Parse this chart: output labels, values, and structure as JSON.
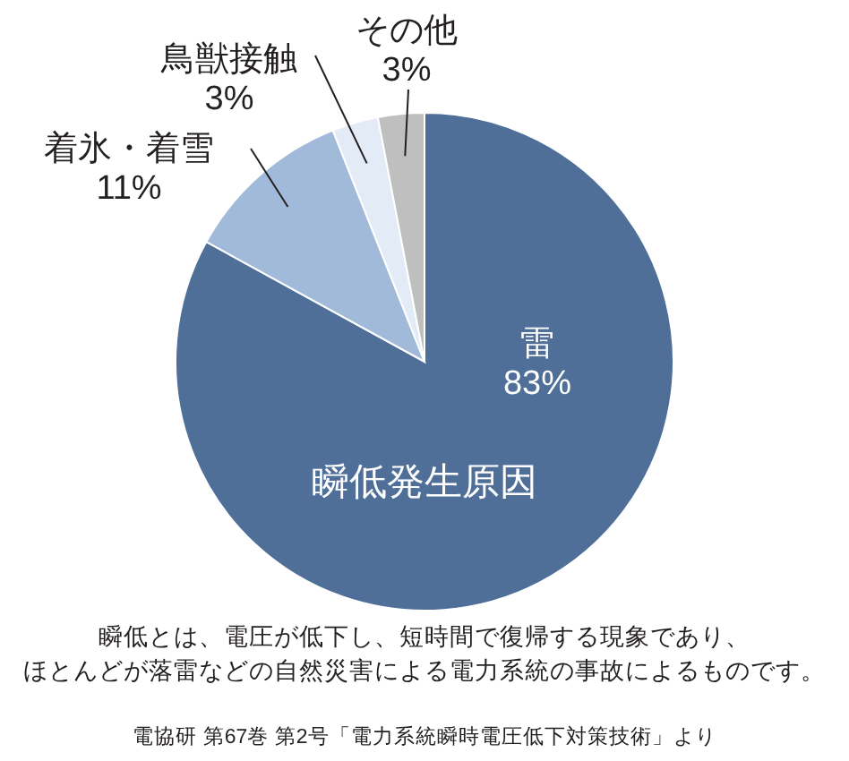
{
  "chart_data": {
    "type": "pie",
    "title": "瞬低発生原因",
    "categories": [
      "雷",
      "着氷・着雪",
      "鳥獣接触",
      "その他"
    ],
    "values": [
      83,
      11,
      3,
      3
    ],
    "colors": [
      "#4f6f99",
      "#a1bada",
      "#e3ebf6",
      "#bfbfbf"
    ],
    "value_labels": [
      "83%",
      "11%",
      "3%",
      "3%"
    ],
    "annotations": [
      "瞬低とは、電圧が低下し、短時間で復帰する現象であり、",
      "ほとんどが落雷などの自然災害による電力系統の事故によるものです。",
      "電協研 第67巻 第2号「電力系統瞬時電圧低下対策技術」より"
    ]
  }
}
